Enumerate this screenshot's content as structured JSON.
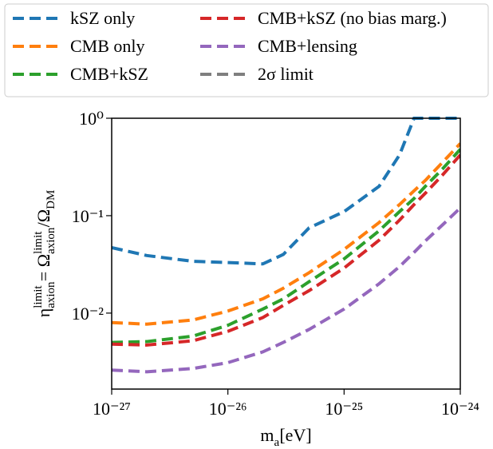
{
  "chart_data": {
    "type": "line",
    "xlabel": [
      {
        "base": "m",
        "sub": "a"
      },
      {
        "base": " [eV]"
      }
    ],
    "ylabel": [
      {
        "base": "η",
        "sub": "axion",
        "sup": "limit"
      },
      {
        "base": " = Ω",
        "sub": "axion",
        "sup": "limit"
      },
      {
        "base": "/Ω",
        "sub": "DM"
      }
    ],
    "log_x": true,
    "log_y": true,
    "x": [
      1e-27,
      2e-27,
      5e-27,
      1e-26,
      2e-26,
      3e-26,
      5e-26,
      1e-25,
      2e-25,
      3e-25,
      4e-25,
      5e-25,
      7e-25,
      1e-24
    ],
    "series": [
      {
        "name": "kSZ only",
        "color": "#1f77b4",
        "values": [
          0.047,
          0.039,
          0.034,
          0.033,
          0.032,
          0.04,
          0.075,
          0.11,
          0.2,
          0.42,
          1,
          1,
          1,
          1
        ]
      },
      {
        "name": "CMB only",
        "color": "#ff7f0e",
        "values": [
          0.008,
          0.0077,
          0.0085,
          0.0105,
          0.014,
          0.018,
          0.026,
          0.045,
          0.085,
          0.13,
          0.18,
          0.23,
          0.35,
          0.55
        ]
      },
      {
        "name": "CMB+kSZ",
        "color": "#2ca02c",
        "values": [
          0.005,
          0.0051,
          0.0058,
          0.0075,
          0.011,
          0.014,
          0.021,
          0.036,
          0.07,
          0.11,
          0.15,
          0.2,
          0.3,
          0.48
        ]
      },
      {
        "name": "CMB+kSZ (no bias marg.)",
        "color": "#d62728",
        "values": [
          0.0048,
          0.0047,
          0.0052,
          0.0065,
          0.009,
          0.012,
          0.017,
          0.029,
          0.056,
          0.09,
          0.13,
          0.17,
          0.26,
          0.42
        ]
      },
      {
        "name": "CMB+lensing",
        "color": "#9467bd",
        "values": [
          0.0026,
          0.0025,
          0.0027,
          0.0031,
          0.004,
          0.005,
          0.0068,
          0.011,
          0.02,
          0.03,
          0.042,
          0.055,
          0.08,
          0.12
        ]
      },
      {
        "name": "2σ limit",
        "color": "#7f7f7f",
        "values": [
          null,
          null,
          null,
          null,
          null,
          null,
          null,
          null,
          null,
          null,
          null,
          null,
          null,
          null
        ]
      }
    ],
    "xlim": [
      1e-27,
      1e-24
    ],
    "ylim": [
      0.00166,
      1
    ],
    "xticks": [
      {
        "value": 1e-27,
        "label": "10⁻²⁷"
      },
      {
        "value": 1e-26,
        "label": "10⁻²⁶"
      },
      {
        "value": 1e-25,
        "label": "10⁻²⁵"
      },
      {
        "value": 1e-24,
        "label": "10⁻²⁴"
      }
    ],
    "yticks": [
      {
        "value": 0.01,
        "label": "10⁻²"
      },
      {
        "value": 0.1,
        "label": "10⁻¹"
      },
      {
        "value": 1,
        "label": "10⁰"
      }
    ],
    "legend_position": "top"
  }
}
